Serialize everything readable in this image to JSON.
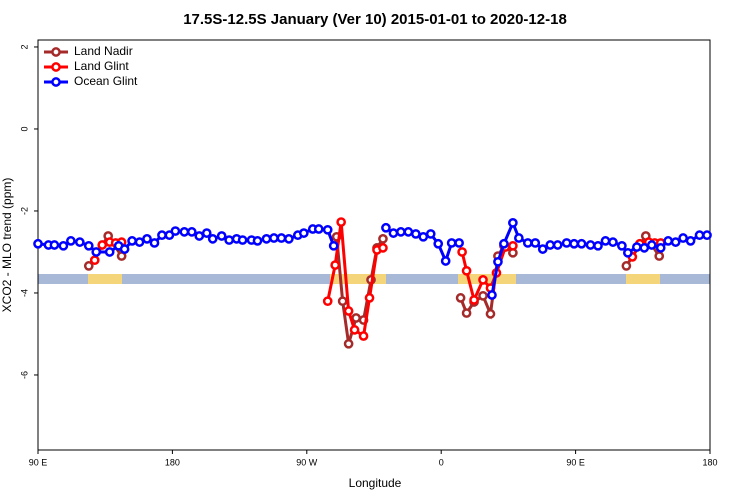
{
  "chart_data": {
    "type": "line",
    "title": "17.5S-12.5S January (Ver 10)   2015-01-01 to 2020-12-18",
    "x_label": "Longitude",
    "y_label": "XCO2 - MLO trend (ppm)",
    "xlim": [
      90,
      540
    ],
    "ylim": [
      -7.83,
      2.17
    ],
    "xticks": [
      {
        "value": 90,
        "label": "90 E"
      },
      {
        "value": 180,
        "label": "180"
      },
      {
        "value": 270,
        "label": "90 W"
      },
      {
        "value": 360,
        "label": "0"
      },
      {
        "value": 450,
        "label": "90 E"
      },
      {
        "value": 540,
        "label": "180"
      }
    ],
    "yticks": [
      -6,
      -4,
      -2,
      0,
      2
    ],
    "legend": "top-left",
    "series": [
      {
        "name": "Land Nadir",
        "color": "#a52a2a",
        "x": [
          124,
          137,
          146,
          null,
          290,
          294,
          298,
          303,
          308,
          313,
          317,
          321,
          null,
          373,
          377,
          382,
          388,
          393,
          398,
          402,
          408,
          null,
          484,
          497,
          506
        ],
        "values": [
          -3.34,
          -2.61,
          -3.1,
          null,
          -2.63,
          -4.2,
          -5.24,
          -4.61,
          -4.66,
          -3.68,
          -2.9,
          -2.68,
          null,
          -4.12,
          -4.49,
          -4.22,
          -4.07,
          -4.51,
          -3.1,
          -2.85,
          -3.02,
          null,
          -3.34,
          -2.61,
          -3.1
        ]
      },
      {
        "name": "Land Glint",
        "color": "#ff0000",
        "x": [
          128,
          133,
          138,
          142,
          146,
          null,
          284,
          289,
          293,
          298,
          302,
          308,
          312,
          317,
          321,
          null,
          374,
          377,
          382,
          388,
          393,
          397,
          403,
          408,
          null,
          488,
          493,
          499,
          503,
          507
        ],
        "values": [
          -3.2,
          -2.83,
          -2.76,
          -2.78,
          -2.76,
          null,
          -4.2,
          -3.32,
          -2.27,
          -4.44,
          -4.9,
          -5.05,
          -4.12,
          -2.95,
          -2.9,
          null,
          -3.0,
          -3.46,
          -4.17,
          -3.68,
          -3.88,
          -3.51,
          -2.88,
          -2.85,
          null,
          -3.12,
          -2.8,
          -2.76,
          -2.78,
          -2.78
        ]
      },
      {
        "name": "Ocean Glint",
        "color": "#0000ff",
        "x": [
          90,
          97,
          101,
          107,
          112,
          118,
          124,
          129,
          138,
          144,
          148,
          153,
          158,
          163,
          168,
          173,
          178,
          182,
          188,
          193,
          198,
          203,
          207,
          213,
          218,
          223,
          227,
          233,
          237,
          243,
          248,
          253,
          258,
          264,
          268,
          274,
          278,
          284,
          288,
          null,
          323,
          328,
          333,
          338,
          343,
          348,
          353,
          358,
          363,
          367,
          372,
          null,
          394,
          398,
          402,
          408,
          412,
          418,
          423,
          428,
          433,
          438,
          444,
          449,
          454,
          460,
          465,
          470,
          475,
          481,
          485,
          491,
          496,
          501,
          507,
          512,
          517,
          522,
          527,
          533,
          538
        ],
        "values": [
          -2.8,
          -2.83,
          -2.83,
          -2.85,
          -2.73,
          -2.76,
          -2.85,
          -3.0,
          -3.0,
          -2.85,
          -2.93,
          -2.73,
          -2.76,
          -2.68,
          -2.78,
          -2.59,
          -2.59,
          -2.49,
          -2.51,
          -2.51,
          -2.61,
          -2.54,
          -2.68,
          -2.61,
          -2.71,
          -2.68,
          -2.71,
          -2.71,
          -2.73,
          -2.68,
          -2.66,
          -2.66,
          -2.68,
          -2.59,
          -2.54,
          -2.44,
          -2.44,
          -2.46,
          -2.85,
          null,
          -2.41,
          -2.54,
          -2.51,
          -2.51,
          -2.56,
          -2.63,
          -2.56,
          -2.8,
          -3.22,
          -2.78,
          -2.78,
          null,
          -4.05,
          -3.24,
          -2.8,
          -2.29,
          -2.66,
          -2.78,
          -2.78,
          -2.93,
          -2.83,
          -2.83,
          -2.78,
          -2.8,
          -2.8,
          -2.83,
          -2.85,
          -2.73,
          -2.76,
          -2.85,
          -3.02,
          -2.88,
          -2.9,
          -2.83,
          -2.9,
          -2.73,
          -2.76,
          -2.66,
          -2.73,
          -2.59,
          -2.59
        ]
      }
    ]
  }
}
